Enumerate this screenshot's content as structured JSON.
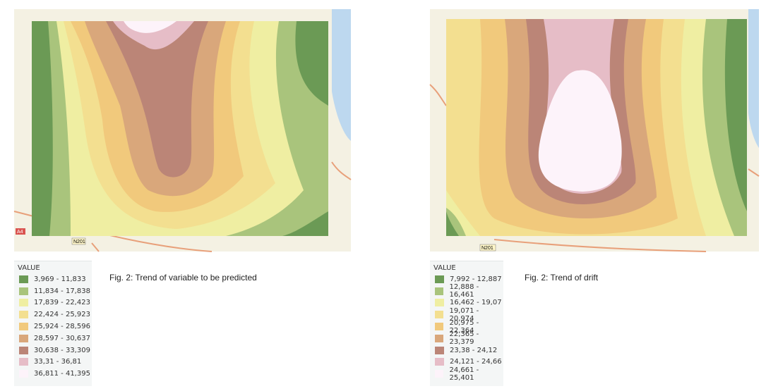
{
  "panels": [
    {
      "legend": {
        "title": "VALUE",
        "entries": [
          {
            "label": "3,969 - 11,833",
            "color": "#6b9a55"
          },
          {
            "label": "11,834 - 17,838",
            "color": "#a9c47c"
          },
          {
            "label": "17,839 - 22,423",
            "color": "#efeea2"
          },
          {
            "label": "22,424 - 25,923",
            "color": "#f3df90"
          },
          {
            "label": "25,924 - 28,596",
            "color": "#f1c97c"
          },
          {
            "label": "28,597 - 30,637",
            "color": "#d9a77b"
          },
          {
            "label": "30,638 - 33,309",
            "color": "#bb8577"
          },
          {
            "label": "33,31 - 36,81",
            "color": "#e6bdc7"
          },
          {
            "label": "36,811 - 41,395",
            "color": "#fdf3fa"
          }
        ]
      },
      "caption": "Fig. 2: Trend of variable to be predicted",
      "road_labels": [
        "N201",
        "A4"
      ]
    },
    {
      "legend": {
        "title": "VALUE",
        "entries": [
          {
            "label": "7,992 - 12,887",
            "color": "#6b9a55"
          },
          {
            "label": "12,888 - 16,461",
            "color": "#a9c47c"
          },
          {
            "label": "16,462 - 19,07",
            "color": "#efeea2"
          },
          {
            "label": "19,071 - 20,974",
            "color": "#f3df90"
          },
          {
            "label": "20,975 - 22,364",
            "color": "#f1c97c"
          },
          {
            "label": "22,365 - 23,379",
            "color": "#d9a77b"
          },
          {
            "label": "23,38 - 24,12",
            "color": "#bb8577"
          },
          {
            "label": "24,121 - 24,66",
            "color": "#e6bdc7"
          },
          {
            "label": "24,661 - 25,401",
            "color": "#fdf3fa"
          }
        ]
      },
      "caption": "Fig. 2: Trend of drift",
      "road_labels": [
        "N201"
      ]
    }
  ]
}
